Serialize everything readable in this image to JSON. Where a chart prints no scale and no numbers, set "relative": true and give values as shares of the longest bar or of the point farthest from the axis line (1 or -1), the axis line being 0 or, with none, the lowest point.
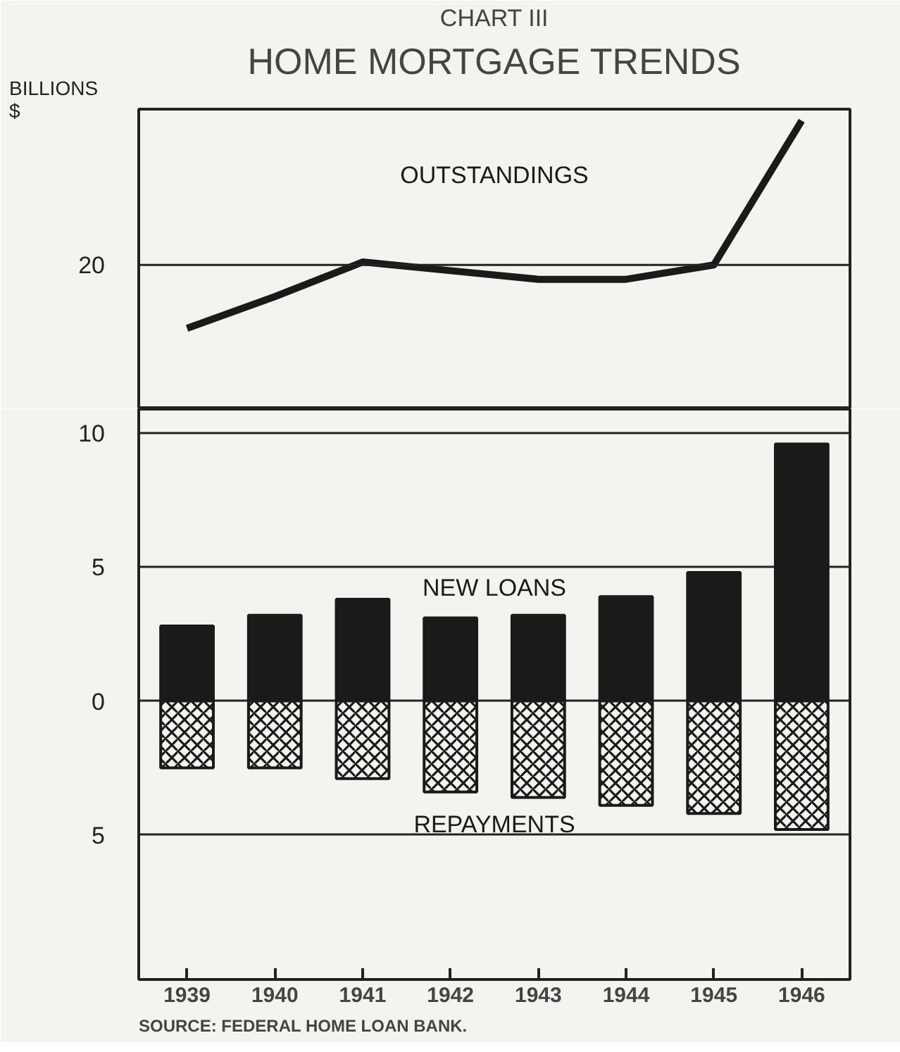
{
  "chart_data": [
    {
      "type": "line",
      "title": "CHART III",
      "subtitle": "HOME MORTGAGE TRENDS",
      "ylabel": "BILLIONS $",
      "categories": [
        "1939",
        "1940",
        "1941",
        "1942",
        "1943",
        "1944",
        "1945",
        "1946"
      ],
      "series": [
        {
          "name": "OUTSTANDINGS",
          "color": "#1a1a1a",
          "values": [
            0.28,
            0.39,
            0.51,
            0.48,
            0.45,
            0.45,
            0.5,
            1
          ]
        }
      ],
      "relative": true,
      "ref_lines": [
        {
          "axis": "y",
          "value": 0.5
        }
      ],
      "annotations": [
        "20"
      ],
      "tick_labels": "y"
    },
    {
      "type": "bar",
      "stacked": true,
      "categories": [
        "1939",
        "1940",
        "1941",
        "1942",
        "1943",
        "1944",
        "1945",
        "1946"
      ],
      "series": [
        {
          "name": "NEW LOANS",
          "color": "#1a1a1a",
          "values": [
            2.8,
            3.2,
            3.8,
            3.1,
            3.2,
            3.9,
            4.8,
            9.6
          ]
        },
        {
          "name": "REPAYMENTS",
          "color": "#1a1a1a",
          "values": [
            -2.5,
            -2.5,
            -2.9,
            -3.4,
            -3.6,
            -3.9,
            -4.2,
            -4.8
          ]
        }
      ],
      "ylim": [
        -10.4,
        10.9
      ],
      "yticks": [
        10,
        5,
        0,
        {
          "value": -5,
          "label": "5"
        }
      ],
      "grid": "y",
      "annotations": [
        "SOURCE: FEDERAL HOME LOAN BANK."
      ]
    }
  ]
}
